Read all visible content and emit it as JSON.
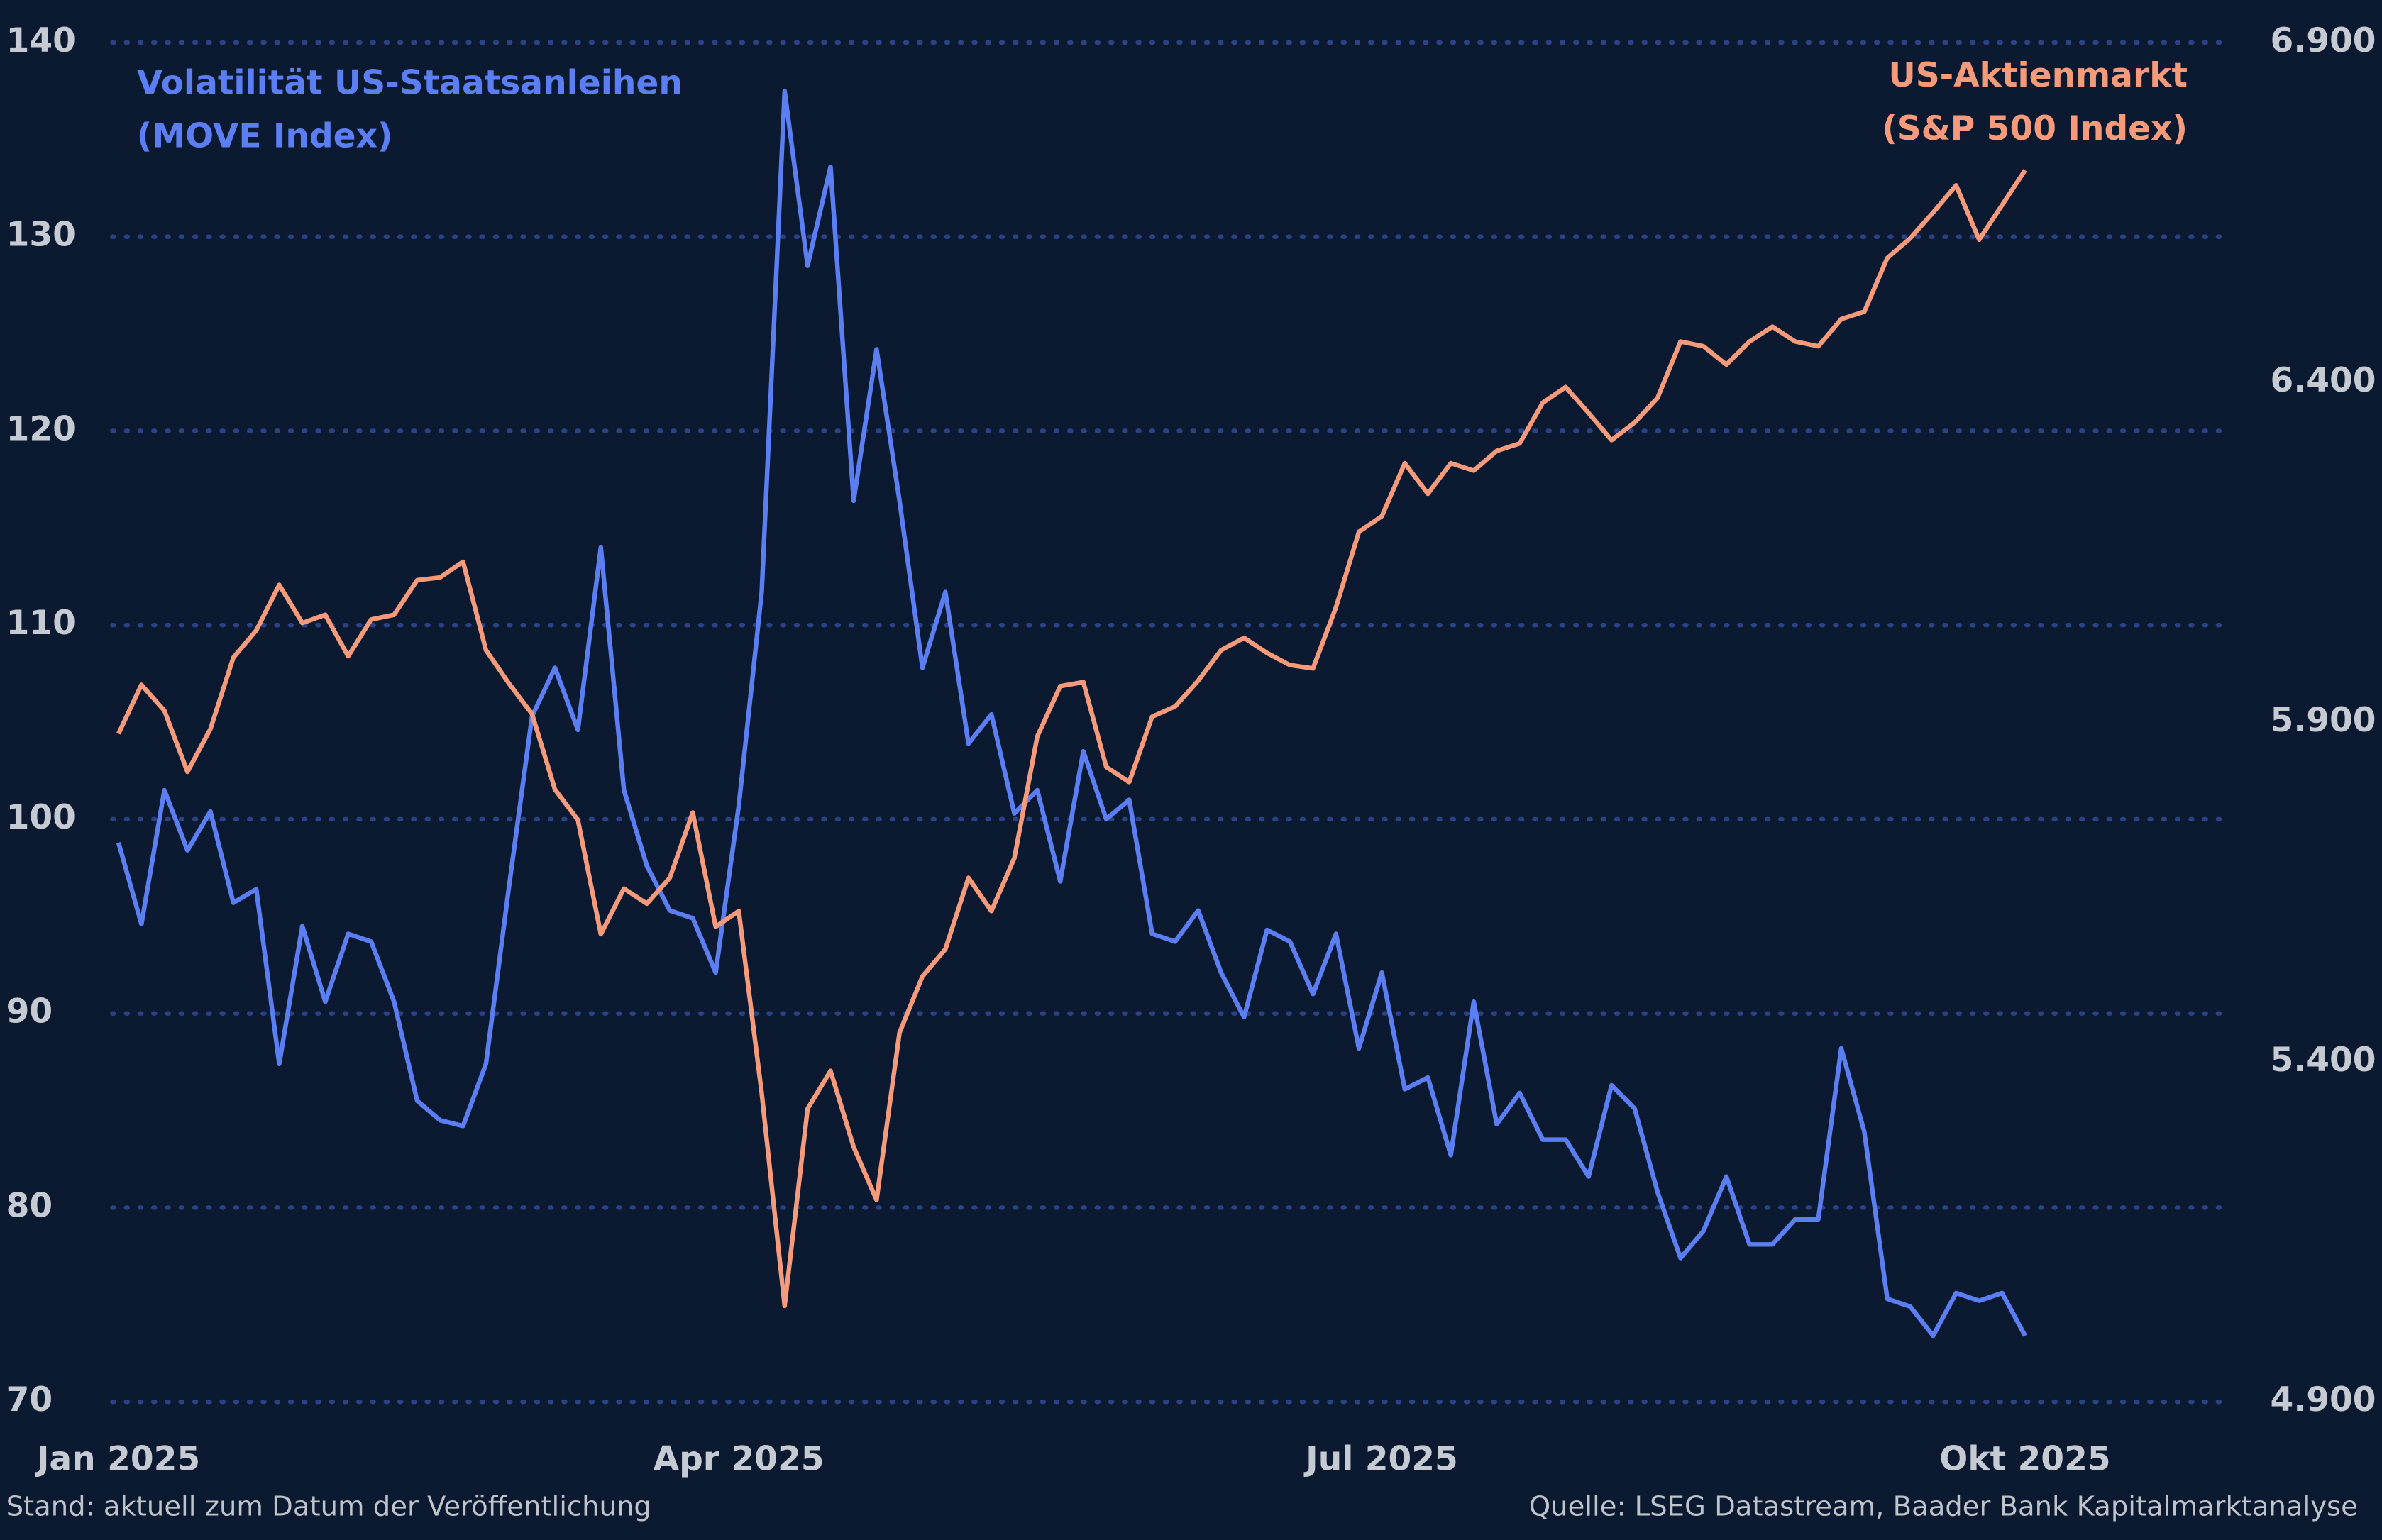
{
  "chart_data": {
    "type": "line",
    "categories": [
      "Jan 2025",
      null,
      null,
      null,
      null,
      null,
      null,
      null,
      null,
      null,
      null,
      null,
      null,
      null,
      null,
      null,
      null,
      null,
      null,
      null,
      null,
      null,
      null,
      null,
      null,
      null,
      null,
      "Apr 2025",
      null,
      null,
      null,
      null,
      null,
      null,
      null,
      null,
      null,
      null,
      null,
      null,
      null,
      null,
      null,
      null,
      null,
      null,
      null,
      null,
      null,
      null,
      null,
      null,
      null,
      null,
      null,
      "Jul 2025",
      null,
      null,
      null,
      null,
      null,
      null,
      null,
      null,
      null,
      null,
      null,
      null,
      null,
      null,
      null,
      null,
      null,
      null,
      null,
      null,
      null,
      null,
      null,
      null,
      null,
      null,
      null,
      "Okt 2025"
    ],
    "series": [
      {
        "name": "Volatilität US-Staatsanleihen (MOVE Index)",
        "color": "#5b7ef2",
        "axis": "y",
        "values": [
          98.8,
          94.6,
          101.5,
          98.4,
          100.4,
          95.7,
          96.4,
          87.4,
          94.5,
          90.6,
          94.1,
          93.7,
          90.6,
          85.5,
          84.5,
          84.2,
          87.4,
          96.5,
          105.3,
          107.8,
          104.6,
          114,
          101.5,
          97.6,
          95.3,
          94.9,
          92.1,
          100.7,
          111.7,
          137.5,
          128.5,
          133.6,
          116.4,
          124.2,
          116.4,
          107.8,
          111.7,
          103.9,
          105.4,
          100.3,
          101.5,
          96.8,
          103.5,
          100,
          101,
          94.1,
          93.7,
          95.3,
          92.1,
          89.8,
          94.3,
          93.7,
          91,
          94.1,
          88.2,
          92.1,
          86.1,
          86.7,
          82.7,
          90.6,
          84.3,
          85.9,
          83.5,
          83.5,
          81.6,
          86.3,
          85.1,
          80.8,
          77.4,
          78.8,
          81.6,
          78.1,
          78.1,
          79.4,
          79.4,
          88.2,
          83.9,
          75.3,
          74.9,
          73.4,
          75.6,
          75.2,
          75.6,
          73.4
        ]
      },
      {
        "name": "US-Aktienmarkt (S&P 500 Index)",
        "color": "#f59b7b",
        "axis": "y2",
        "values": [
          5883,
          5955,
          5917,
          5827,
          5890,
          5995,
          6035,
          6102,
          6046,
          6058,
          5997,
          6051,
          6058,
          6109,
          6113,
          6136,
          6006,
          5957,
          5912,
          5801,
          5756,
          5588,
          5655,
          5633,
          5671,
          5767,
          5599,
          5622,
          5354,
          5041,
          5331,
          5387,
          5275,
          5197,
          5443,
          5526,
          5566,
          5671,
          5622,
          5700,
          5879,
          5953,
          5959,
          5834,
          5812,
          5908,
          5923,
          5961,
          6006,
          6024,
          6002,
          5984,
          5979,
          6069,
          6180,
          6203,
          6281,
          6236,
          6281,
          6270,
          6299,
          6310,
          6370,
          6393,
          6355,
          6315,
          6341,
          6377,
          6460,
          6453,
          6426,
          6460,
          6482,
          6460,
          6453,
          6493,
          6504,
          6583,
          6612,
          6650,
          6690,
          6610,
          6661,
          6712
        ]
      }
    ],
    "ylim": [
      70,
      140
    ],
    "yticks": [
      70,
      80,
      90,
      100,
      110,
      120,
      130,
      140
    ],
    "y2lim": [
      4900,
      6900
    ],
    "y2ticks": [
      {
        "value": 4900,
        "label": "4.900"
      },
      {
        "value": 5400,
        "label": "5.400"
      },
      {
        "value": 5900,
        "label": "5.900"
      },
      {
        "value": 6400,
        "label": "6.400"
      },
      {
        "value": 6900,
        "label": "6.900"
      }
    ],
    "grid": true,
    "footnote_left": "Stand: aktuell zum Datum der Veröffentlichung",
    "footnote_right": "Quelle: LSEG Datastream, Baader Bank Kapitalmarktanalyse"
  }
}
